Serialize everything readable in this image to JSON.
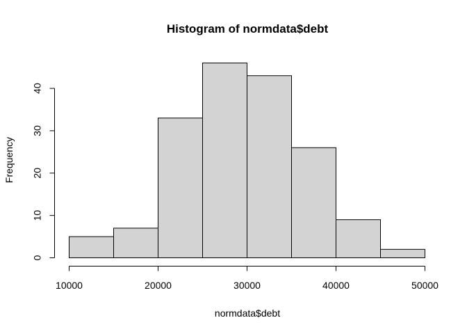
{
  "chart_data": {
    "type": "bar",
    "title": "Histogram of normdata$debt",
    "xlabel": "normdata$debt",
    "ylabel": "Frequency",
    "bins": [
      {
        "start": 10000,
        "end": 15000,
        "count": 5
      },
      {
        "start": 15000,
        "end": 20000,
        "count": 7
      },
      {
        "start": 20000,
        "end": 25000,
        "count": 33
      },
      {
        "start": 25000,
        "end": 30000,
        "count": 46
      },
      {
        "start": 30000,
        "end": 35000,
        "count": 43
      },
      {
        "start": 35000,
        "end": 40000,
        "count": 26
      },
      {
        "start": 40000,
        "end": 45000,
        "count": 9
      },
      {
        "start": 45000,
        "end": 50000,
        "count": 2
      }
    ],
    "xlim": [
      10000,
      50000
    ],
    "ylim": [
      0,
      46
    ],
    "xticks": [
      10000,
      20000,
      30000,
      40000,
      50000
    ],
    "yticks": [
      0,
      10,
      20,
      30,
      40
    ],
    "bar_color": "#d3d3d3",
    "grid": false
  }
}
